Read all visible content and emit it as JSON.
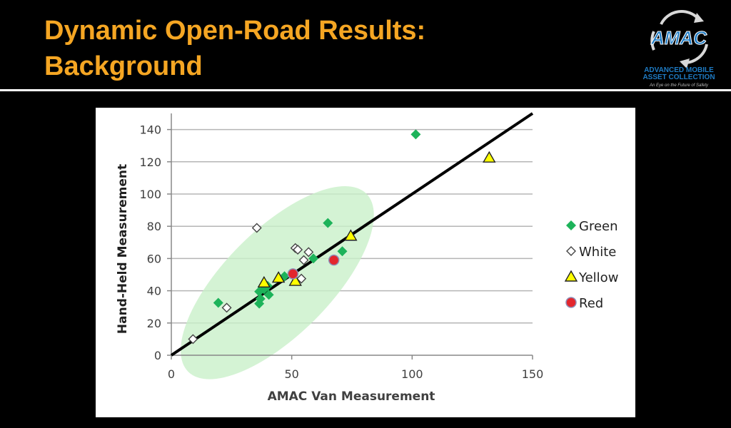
{
  "slide": {
    "title_line1": "Dynamic Open-Road Results:",
    "title_line2": "Background"
  },
  "logo": {
    "name": "AMAC",
    "line1": "ADVANCED MOBILE",
    "line2": "ASSET COLLECTION",
    "tagline": "An Eye on the Future of Safety",
    "color": "#1e7bc4"
  },
  "chart_data": {
    "type": "scatter",
    "xlabel": "AMAC Van Measurement",
    "ylabel": "Hand-Held Measurement",
    "xlim": [
      0,
      150
    ],
    "ylim": [
      0,
      150
    ],
    "xticks": [
      0,
      50,
      100,
      150
    ],
    "yticks": [
      0,
      20,
      40,
      60,
      80,
      100,
      120,
      140
    ],
    "grid": "horizontal",
    "legend_position": "right",
    "reference_line": {
      "from": [
        0,
        0
      ],
      "to": [
        150,
        150
      ],
      "color": "#000000"
    },
    "highlight_ellipse": {
      "cx": 44,
      "cy": 45,
      "rx": 37,
      "ry": 25,
      "angle_deg": 45,
      "color": "#c9f0c9"
    },
    "series": [
      {
        "name": "Green",
        "marker": "diamond-filled",
        "color": "#1db35a",
        "points": [
          [
            19.5,
            32.5
          ],
          [
            36.5,
            32
          ],
          [
            37,
            35
          ],
          [
            36.5,
            39.5
          ],
          [
            38.5,
            41
          ],
          [
            40.5,
            37.5
          ],
          [
            40,
            43
          ],
          [
            47,
            49
          ],
          [
            59,
            60
          ],
          [
            65,
            82
          ],
          [
            71,
            64.5
          ],
          [
            101.5,
            137
          ]
        ]
      },
      {
        "name": "White",
        "marker": "diamond-open",
        "color": "#444444",
        "points": [
          [
            9,
            10
          ],
          [
            23,
            29.5
          ],
          [
            35.5,
            79
          ],
          [
            51.5,
            66.5
          ],
          [
            52.5,
            65.5
          ],
          [
            54,
            47.5
          ],
          [
            55,
            59
          ],
          [
            57,
            64
          ]
        ]
      },
      {
        "name": "Yellow",
        "marker": "triangle",
        "color": "#ffff00",
        "points": [
          [
            38.5,
            45
          ],
          [
            44.5,
            48
          ],
          [
            51.5,
            46
          ],
          [
            74.5,
            74
          ],
          [
            132,
            122.5
          ]
        ]
      },
      {
        "name": "Red",
        "marker": "circle",
        "color": "#e3262d",
        "points": [
          [
            50.5,
            50.5
          ],
          [
            67.5,
            59
          ]
        ]
      }
    ]
  }
}
